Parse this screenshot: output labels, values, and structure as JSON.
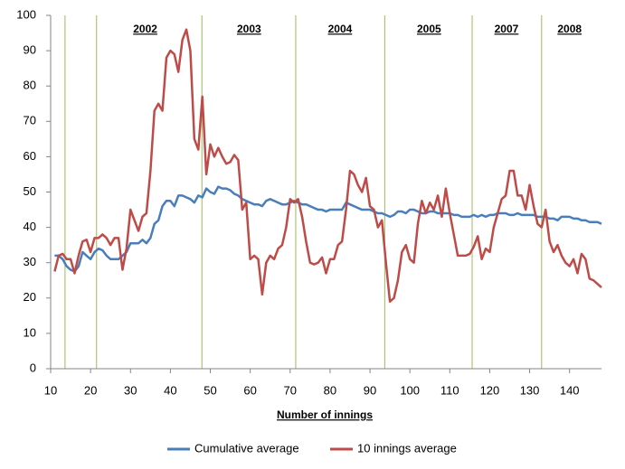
{
  "chart_data": {
    "type": "line",
    "x_label": "Number of innings",
    "x": [
      11,
      12,
      13,
      14,
      15,
      16,
      17,
      18,
      19,
      20,
      21,
      22,
      23,
      24,
      25,
      26,
      27,
      28,
      29,
      30,
      31,
      32,
      33,
      34,
      35,
      36,
      37,
      38,
      39,
      40,
      41,
      42,
      43,
      44,
      45,
      46,
      47,
      48,
      49,
      50,
      51,
      52,
      53,
      54,
      55,
      56,
      57,
      58,
      59,
      60,
      61,
      62,
      63,
      64,
      65,
      66,
      67,
      68,
      69,
      70,
      71,
      72,
      73,
      74,
      75,
      76,
      77,
      78,
      79,
      80,
      81,
      82,
      83,
      84,
      85,
      86,
      87,
      88,
      89,
      90,
      91,
      92,
      93,
      94,
      95,
      96,
      97,
      98,
      99,
      100,
      101,
      102,
      103,
      104,
      105,
      106,
      107,
      108,
      109,
      110,
      111,
      112,
      113,
      114,
      115,
      116,
      117,
      118,
      119,
      120,
      121,
      122,
      123,
      124,
      125,
      126,
      127,
      128,
      129,
      130,
      131,
      132,
      133,
      134,
      135,
      136,
      137,
      138,
      139,
      140,
      141,
      142,
      143,
      144,
      145,
      146,
      147,
      148
    ],
    "series": [
      {
        "name": "Cumulative average",
        "color": "#4a7ebb",
        "values": [
          32,
          32,
          31,
          29,
          28,
          27.5,
          29,
          33,
          32,
          31,
          33,
          34,
          33.5,
          32,
          31,
          31,
          31,
          32,
          33,
          35.5,
          35.5,
          35.5,
          36.5,
          35.5,
          37,
          41,
          42,
          46,
          47.5,
          47.5,
          46,
          49,
          49,
          48.5,
          48,
          47,
          49,
          48.5,
          51,
          50,
          49.5,
          51.5,
          51,
          51,
          50.5,
          49.5,
          49,
          48,
          47.5,
          47,
          46.5,
          46.5,
          46,
          47.5,
          48,
          47.5,
          47,
          46.5,
          46.5,
          47,
          47.5,
          47,
          46.5,
          46.5,
          46,
          45.5,
          45,
          45,
          44.5,
          45,
          45,
          45,
          45,
          47,
          46.5,
          46,
          45.5,
          45,
          45,
          45,
          44.5,
          44,
          44,
          43.5,
          43,
          43.5,
          44.5,
          44.5,
          44,
          45,
          45,
          44.5,
          44,
          44,
          44.5,
          44.5,
          44,
          44,
          44,
          44,
          43.5,
          43.5,
          43,
          43,
          43,
          43.5,
          43,
          43.5,
          43,
          43.5,
          43.5,
          44,
          44,
          44,
          43.5,
          43.5,
          44,
          43.5,
          43.5,
          43.5,
          43.5,
          43,
          43,
          43,
          42.5,
          42.5,
          42,
          43,
          43,
          43,
          42.5,
          42.5,
          42,
          42,
          41.5,
          41.5,
          41.5,
          41
        ]
      },
      {
        "name": "10 innings average",
        "color": "#be4b48",
        "values": [
          27.5,
          32,
          32.5,
          31,
          31,
          27,
          32,
          36,
          36.5,
          33,
          37,
          37,
          38,
          37,
          35,
          37,
          37,
          28,
          34,
          45,
          42,
          39,
          43,
          44,
          56,
          73,
          75,
          73,
          88,
          90,
          89,
          84,
          93,
          96,
          90,
          65,
          62,
          77,
          55,
          63.5,
          60,
          62.5,
          60,
          58,
          58.5,
          60.5,
          59,
          45,
          47,
          31,
          32,
          31,
          21,
          30,
          32,
          31,
          34,
          35,
          40,
          48,
          47,
          48,
          43,
          36,
          30,
          29.5,
          30,
          31.5,
          27,
          31,
          31,
          35,
          36,
          45,
          56,
          55,
          52,
          50,
          54,
          46,
          45,
          40,
          42,
          30,
          19,
          20,
          25,
          33,
          35,
          31,
          30,
          41,
          47.5,
          44,
          47,
          45,
          49,
          43,
          51,
          44,
          38,
          32,
          32,
          32,
          32.5,
          34.5,
          37.5,
          31,
          34,
          33,
          40,
          44,
          48,
          49,
          56,
          56,
          49,
          49,
          45,
          52,
          46,
          41,
          40,
          45,
          36,
          33,
          35,
          32,
          30,
          29,
          31,
          27,
          32.5,
          31,
          25.5,
          25,
          24,
          23
        ]
      }
    ],
    "xlim": [
      10,
      148
    ],
    "xticks": [
      10,
      20,
      30,
      40,
      50,
      60,
      70,
      80,
      90,
      100,
      110,
      120,
      130,
      140
    ],
    "ylim": [
      0,
      100
    ],
    "yticks": [
      0,
      10,
      20,
      30,
      40,
      50,
      60,
      70,
      80,
      90,
      100
    ],
    "grid": false,
    "marker_color": "#9bbb59",
    "year_markers": [
      13.6,
      21.5,
      47.9,
      71.4,
      93.7,
      115.6,
      133
    ],
    "year_labels": [
      {
        "text": "2002",
        "x": 33.7
      },
      {
        "text": "2003",
        "x": 59.7
      },
      {
        "text": "2004",
        "x": 82.5
      },
      {
        "text": "2005",
        "x": 104.8
      },
      {
        "text": "2007",
        "x": 124.2
      },
      {
        "text": "2008",
        "x": 140
      }
    ],
    "legend": "bottom"
  }
}
